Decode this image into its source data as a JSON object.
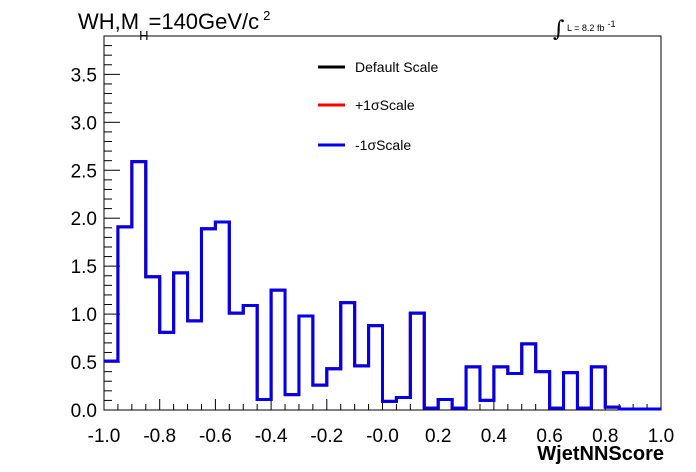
{
  "chart_data": {
    "type": "line",
    "title": "WH,M",
    "title_sub": "H",
    "title_rest": "=140GeV/c",
    "title_sup": "2",
    "luminosity": "L = 8.2 fb",
    "luminosity_sup": "-1",
    "xlabel": "WjetNNScore",
    "xlim": [
      -1.0,
      1.0
    ],
    "ylim": [
      0,
      3.9
    ],
    "x_ticks": [
      "-1.0",
      "-0.8",
      "-0.6",
      "-0.4",
      "-0.2",
      "-0.0",
      "0.2",
      "0.4",
      "0.6",
      "0.8",
      "1.0"
    ],
    "y_ticks": [
      "0.0",
      "0.5",
      "1.0",
      "1.5",
      "2.0",
      "2.5",
      "3.0",
      "3.5"
    ],
    "bin_edges": [
      -1.0,
      -0.95,
      -0.9,
      -0.85,
      -0.8,
      -0.75,
      -0.7,
      -0.65,
      -0.6,
      -0.55,
      -0.5,
      -0.45,
      -0.4,
      -0.35,
      -0.3,
      -0.25,
      -0.2,
      -0.15,
      -0.1,
      -0.05,
      0.0,
      0.05,
      0.1,
      0.15,
      0.2,
      0.25,
      0.3,
      0.35,
      0.4,
      0.45,
      0.5,
      0.55,
      0.6,
      0.65,
      0.7,
      0.75,
      0.8,
      0.85,
      0.9,
      0.95,
      1.0
    ],
    "series": [
      {
        "name": "Default Scale",
        "color": "#000000",
        "values": [
          0.51,
          1.91,
          2.59,
          1.39,
          0.81,
          1.43,
          0.93,
          1.89,
          1.96,
          1.01,
          1.09,
          0.11,
          1.25,
          0.16,
          0.98,
          0.26,
          0.43,
          1.12,
          0.46,
          0.88,
          0.09,
          0.13,
          1.01,
          0.02,
          0.11,
          0.02,
          0.45,
          0.1,
          0.45,
          0.38,
          0.69,
          0.4,
          0.02,
          0.39,
          0.02,
          0.45,
          0.03,
          0.01,
          0.01,
          0.01
        ]
      },
      {
        "name": "+1σScale",
        "color": "#ff0000",
        "values": [
          0.51,
          1.91,
          2.59,
          1.39,
          0.81,
          1.43,
          0.93,
          1.89,
          1.96,
          1.01,
          1.09,
          0.11,
          1.25,
          0.16,
          0.98,
          0.26,
          0.43,
          1.12,
          0.46,
          0.88,
          0.09,
          0.13,
          1.01,
          0.02,
          0.11,
          0.02,
          0.45,
          0.1,
          0.45,
          0.38,
          0.69,
          0.4,
          0.02,
          0.39,
          0.02,
          0.45,
          0.03,
          0.01,
          0.01,
          0.01
        ]
      },
      {
        "name": "-1σScale",
        "color": "#0000ee",
        "values": [
          0.51,
          1.91,
          2.59,
          1.39,
          0.81,
          1.43,
          0.93,
          1.89,
          1.96,
          1.01,
          1.09,
          0.11,
          1.25,
          0.16,
          0.98,
          0.26,
          0.43,
          1.12,
          0.46,
          0.88,
          0.09,
          0.13,
          1.01,
          0.02,
          0.11,
          0.02,
          0.45,
          0.1,
          0.45,
          0.38,
          0.69,
          0.4,
          0.02,
          0.39,
          0.02,
          0.45,
          0.03,
          0.01,
          0.01,
          0.01
        ]
      }
    ],
    "legend_position": "top-center",
    "grid": false
  }
}
